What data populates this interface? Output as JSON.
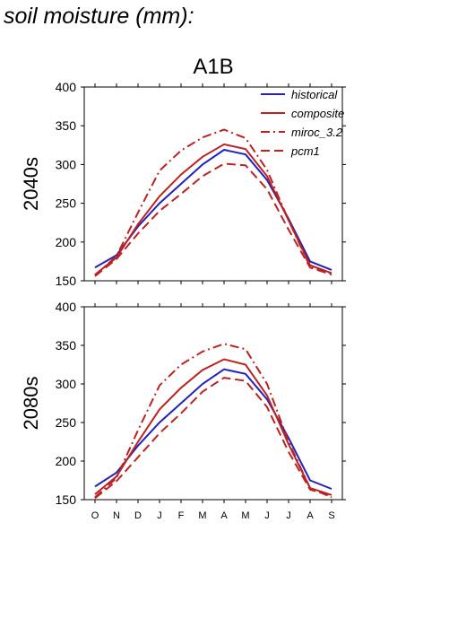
{
  "page_title": "soil moisture (mm):",
  "chart_data": [
    {
      "type": "line",
      "title": "A1B",
      "ylabel": "2040s",
      "categories": [
        "O",
        "N",
        "D",
        "J",
        "F",
        "M",
        "A",
        "M",
        "J",
        "J",
        "A",
        "S"
      ],
      "ylim": [
        150,
        400
      ],
      "yticks": [
        150,
        200,
        250,
        300,
        350,
        400
      ],
      "grid": false,
      "legend_position": "top-right",
      "series": [
        {
          "name": "historical",
          "color": "#2222bb",
          "dash": "solid",
          "values": [
            167,
            183,
            220,
            250,
            275,
            300,
            319,
            313,
            280,
            230,
            175,
            164
          ]
        },
        {
          "name": "composite",
          "color": "#bb2222",
          "dash": "solid",
          "values": [
            158,
            180,
            223,
            259,
            287,
            310,
            326,
            320,
            285,
            228,
            170,
            160
          ]
        },
        {
          "name": "miroc_3.2",
          "color": "#bb2222",
          "dash": "dashdot",
          "values": [
            157,
            182,
            238,
            292,
            318,
            335,
            345,
            334,
            293,
            228,
            168,
            159
          ]
        },
        {
          "name": "pcm1",
          "color": "#bb2222",
          "dash": "dashed",
          "values": [
            156,
            178,
            211,
            240,
            262,
            285,
            301,
            299,
            268,
            216,
            167,
            158
          ]
        }
      ]
    },
    {
      "type": "line",
      "title": "",
      "ylabel": "2080s",
      "categories": [
        "O",
        "N",
        "D",
        "J",
        "F",
        "M",
        "A",
        "M",
        "J",
        "J",
        "A",
        "S"
      ],
      "ylim": [
        150,
        400
      ],
      "yticks": [
        150,
        200,
        250,
        300,
        350,
        400
      ],
      "grid": false,
      "series": [
        {
          "name": "historical",
          "color": "#2222bb",
          "dash": "solid",
          "values": [
            167,
            185,
            220,
            250,
            275,
            300,
            319,
            313,
            280,
            230,
            175,
            164
          ]
        },
        {
          "name": "composite",
          "color": "#bb2222",
          "dash": "solid",
          "values": [
            157,
            180,
            225,
            267,
            295,
            318,
            332,
            325,
            285,
            222,
            165,
            156
          ]
        },
        {
          "name": "miroc_3.2",
          "color": "#bb2222",
          "dash": "dashdot",
          "values": [
            153,
            178,
            240,
            298,
            325,
            342,
            352,
            345,
            300,
            225,
            165,
            153
          ]
        },
        {
          "name": "pcm1",
          "color": "#bb2222",
          "dash": "dashed",
          "values": [
            152,
            174,
            205,
            236,
            262,
            290,
            308,
            304,
            270,
            212,
            163,
            155
          ]
        }
      ]
    }
  ]
}
